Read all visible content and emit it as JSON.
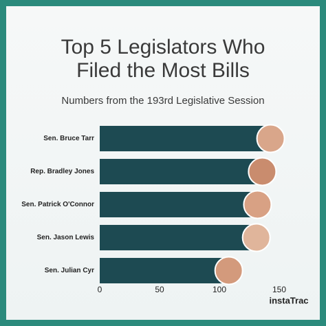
{
  "chart_data": {
    "type": "bar",
    "orientation": "horizontal",
    "title": "Top 5 Legislators Who Filed the Most Bills",
    "subtitle": "Numbers from the 193rd Legislative Session",
    "categories": [
      "Sen. Bruce Tarr",
      "Rep. Bradley Jones",
      "Sen. Patrick O'Connor",
      "Sen. Jason Lewis",
      "Sen. Julian Cyr"
    ],
    "values": [
      144,
      137,
      133,
      132,
      109
    ],
    "color": "#1d4a52",
    "xlim": [
      0,
      150
    ],
    "xticks": [
      0,
      50,
      100,
      150
    ],
    "brand": "instaTrac"
  }
}
